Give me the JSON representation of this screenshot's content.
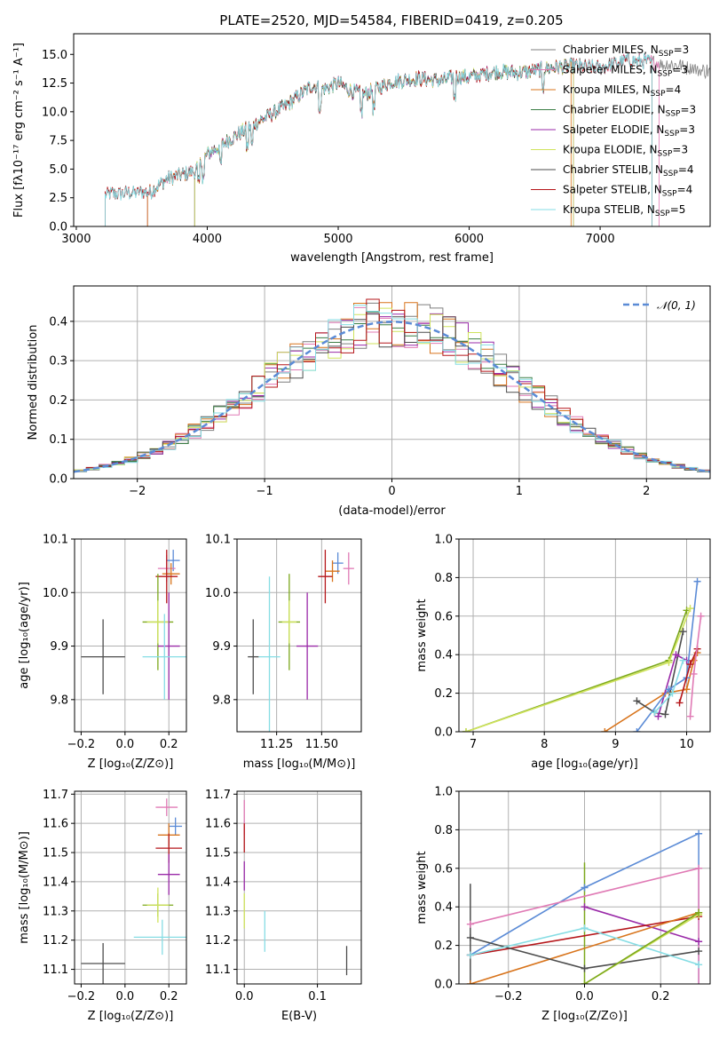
{
  "title": "PLATE=2520, MJD=54584, FIBERID=0419, z=0.205",
  "chart_data": [
    {
      "id": "spectrum",
      "type": "line",
      "xlabel": "wavelength [Angstrom, rest frame]",
      "ylabel": "Flux [fλ10⁻¹⁷ erg cm⁻² s⁻¹ A⁻¹]",
      "xlim": [
        2980,
        7840
      ],
      "ylim": [
        0,
        16.8
      ],
      "xticks": [
        3000,
        4000,
        5000,
        6000,
        7000
      ],
      "yticks": [
        0.0,
        2.5,
        5.0,
        7.5,
        10.0,
        12.5,
        15.0
      ],
      "xtick_labels": [
        "3000",
        "4000",
        "5000",
        "6000",
        "7000"
      ],
      "ytick_labels": [
        "0.0",
        "2.5",
        "5.0",
        "7.5",
        "10.0",
        "12.5",
        "15.0"
      ],
      "legend_position": "right",
      "continuum": [
        [
          3220,
          2.8
        ],
        [
          3500,
          3.0
        ],
        [
          3560,
          3.0
        ],
        [
          3700,
          4.2
        ],
        [
          3900,
          4.8
        ],
        [
          4000,
          6.3
        ],
        [
          4200,
          7.8
        ],
        [
          4400,
          9.2
        ],
        [
          4600,
          10.5
        ],
        [
          4800,
          12.3
        ],
        [
          4900,
          12.0
        ],
        [
          5000,
          12.5
        ],
        [
          5100,
          11.8
        ],
        [
          5200,
          11.5
        ],
        [
          5400,
          12.6
        ],
        [
          5600,
          12.9
        ],
        [
          5800,
          12.7
        ],
        [
          5900,
          13.1
        ],
        [
          6000,
          13.0
        ],
        [
          6200,
          13.5
        ],
        [
          6400,
          13.4
        ],
        [
          6600,
          13.8
        ],
        [
          6800,
          14.0
        ],
        [
          7000,
          13.8
        ],
        [
          7200,
          14.5
        ],
        [
          7400,
          14.3
        ],
        [
          7600,
          14.0
        ],
        [
          7840,
          13.5
        ]
      ],
      "series": [
        {
          "name": "Chabrier MILES, N_SSP=3",
          "color": "#7f7f7f",
          "start": 3540,
          "end": 7840
        },
        {
          "name": "Salpeter MILES, N_SSP=3",
          "color": "#e07ab5",
          "start": 3540,
          "end": 7450
        },
        {
          "name": "Kroupa MILES, N_SSP=4",
          "color": "#d8741c",
          "start": 3540,
          "end": 6780
        },
        {
          "name": "Chabrier ELODIE, N_SSP=3",
          "color": "#3a7d44",
          "start": 3900,
          "end": 6800
        },
        {
          "name": "Salpeter ELODIE, N_SSP=3",
          "color": "#9a2aa8",
          "start": 3900,
          "end": 6800
        },
        {
          "name": "Kroupa ELODIE, N_SSP=3",
          "color": "#cfe35c",
          "start": 3900,
          "end": 6800
        },
        {
          "name": "Chabrier STELIB, N_SSP=4",
          "color": "#4d4d4d",
          "start": 3220,
          "end": 7400
        },
        {
          "name": "Salpeter STELIB, N_SSP=4",
          "color": "#b5161a",
          "start": 3220,
          "end": 7400
        },
        {
          "name": "Kroupa STELIB, N_SSP=5",
          "color": "#86dde4",
          "start": 3220,
          "end": 7400
        }
      ],
      "legend_labels": [
        {
          "model": "Chabrier MILES, N",
          "sub": "SSP",
          "tail": "=3"
        },
        {
          "model": "Salpeter MILES, N",
          "sub": "SSP",
          "tail": "=3"
        },
        {
          "model": "Kroupa MILES, N",
          "sub": "SSP",
          "tail": "=4"
        },
        {
          "model": "Chabrier ELODIE, N",
          "sub": "SSP",
          "tail": "=3"
        },
        {
          "model": "Salpeter ELODIE, N",
          "sub": "SSP",
          "tail": "=3"
        },
        {
          "model": "Kroupa ELODIE, N",
          "sub": "SSP",
          "tail": "=3"
        },
        {
          "model": "Chabrier STELIB, N",
          "sub": "SSP",
          "tail": "=4"
        },
        {
          "model": "Salpeter STELIB, N",
          "sub": "SSP",
          "tail": "=4"
        },
        {
          "model": "Kroupa STELIB, N",
          "sub": "SSP",
          "tail": "=5"
        }
      ]
    },
    {
      "id": "residuals",
      "type": "histogram",
      "xlabel": "(data-model)/error",
      "ylabel": "Normed distribution",
      "xlim": [
        -2.5,
        2.5
      ],
      "ylim": [
        0,
        0.49
      ],
      "xticks": [
        -2,
        -1,
        0,
        1,
        2
      ],
      "xtick_labels": [
        "−2",
        "−1",
        "0",
        "1",
        "2"
      ],
      "yticks": [
        0.0,
        0.1,
        0.2,
        0.3,
        0.4
      ],
      "ytick_labels": [
        "0.0",
        "0.1",
        "0.2",
        "0.3",
        "0.4"
      ],
      "bin_width": 0.1,
      "reference": {
        "label": "𝒩(0, 1)",
        "color": "#5b8bd6",
        "style": "dashed",
        "mean": 0,
        "sigma": 1
      },
      "legend_position": "top-right"
    },
    {
      "id": "age_vs_Z",
      "type": "scatter",
      "xlabel": "Z [log₁₀(Z/Z⊙)]",
      "ylabel": "age  [log₁₀(age/yr)]",
      "xlim": [
        -0.23,
        0.28
      ],
      "ylim": [
        9.74,
        10.1
      ],
      "xticks": [
        -0.2,
        0.0,
        0.2
      ],
      "xtick_labels": [
        "−0.2",
        "0.0",
        "0.2"
      ],
      "yticks": [
        9.8,
        9.9,
        10.0,
        10.1
      ],
      "ytick_labels": [
        "9.8",
        "9.9",
        "10.0",
        "10.1"
      ],
      "points": [
        {
          "x": 0.22,
          "y": 10.06,
          "xerr": 0.03,
          "yerr": 0.02,
          "color": "#5b8bd6"
        },
        {
          "x": 0.19,
          "y": 10.045,
          "xerr": 0.04,
          "yerr": 0.025,
          "color": "#e07ab5"
        },
        {
          "x": 0.21,
          "y": 10.035,
          "xerr": 0.04,
          "yerr": 0.02,
          "color": "#d8741c"
        },
        {
          "x": 0.19,
          "y": 10.03,
          "xerr": 0.05,
          "yerr": 0.05,
          "color": "#b5161a"
        },
        {
          "x": 0.15,
          "y": 9.945,
          "xerr": 0.07,
          "yerr": 0.09,
          "color": "#7ca81c"
        },
        {
          "x": 0.15,
          "y": 9.945,
          "xerr": 0.05,
          "yerr": 0.04,
          "color": "#cfe35c"
        },
        {
          "x": 0.2,
          "y": 9.9,
          "xerr": 0.05,
          "yerr": 0.1,
          "color": "#9a2aa8"
        },
        {
          "x": 0.18,
          "y": 9.88,
          "xerr": 0.1,
          "yerr": 0.08,
          "color": "#86dde4"
        },
        {
          "x": -0.1,
          "y": 9.88,
          "xerr": 0.1,
          "yerr": 0.07,
          "color": "#4d4d4d"
        }
      ]
    },
    {
      "id": "age_vs_mass",
      "type": "scatter",
      "xlabel": "mass [log₁₀(M/M⊙)]",
      "ylabel": "",
      "xlim": [
        11.03,
        11.72
      ],
      "ylim": [
        9.74,
        10.1
      ],
      "xticks": [
        11.25,
        11.5
      ],
      "xtick_labels": [
        "11.25",
        "11.50"
      ],
      "yticks": [
        9.8,
        9.9,
        10.0,
        10.1
      ],
      "ytick_labels": [
        "9.8",
        "9.9",
        "10.0",
        "10.1"
      ],
      "points": [
        {
          "x": 11.59,
          "y": 10.055,
          "xerr": 0.03,
          "yerr": 0.02,
          "color": "#5b8bd6"
        },
        {
          "x": 11.65,
          "y": 10.045,
          "xerr": 0.03,
          "yerr": 0.03,
          "color": "#e07ab5"
        },
        {
          "x": 11.56,
          "y": 10.04,
          "xerr": 0.04,
          "yerr": 0.02,
          "color": "#d8741c"
        },
        {
          "x": 11.52,
          "y": 10.03,
          "xerr": 0.04,
          "yerr": 0.05,
          "color": "#b5161a"
        },
        {
          "x": 11.32,
          "y": 9.945,
          "xerr": 0.06,
          "yerr": 0.09,
          "color": "#7ca81c"
        },
        {
          "x": 11.32,
          "y": 9.945,
          "xerr": 0.04,
          "yerr": 0.04,
          "color": "#cfe35c"
        },
        {
          "x": 11.42,
          "y": 9.9,
          "xerr": 0.06,
          "yerr": 0.1,
          "color": "#9a2aa8"
        },
        {
          "x": 11.21,
          "y": 9.88,
          "xerr": 0.06,
          "yerr": 0.15,
          "color": "#86dde4"
        },
        {
          "x": 11.12,
          "y": 9.88,
          "xerr": 0.03,
          "yerr": 0.07,
          "color": "#4d4d4d"
        }
      ]
    },
    {
      "id": "weight_vs_age",
      "type": "line",
      "xlabel": "age  [log₁₀(age/yr)]",
      "ylabel": "mass weight",
      "xlim": [
        6.8,
        10.33
      ],
      "ylim": [
        0,
        1.0
      ],
      "xticks": [
        7,
        8,
        9,
        10
      ],
      "xtick_labels": [
        "7",
        "8",
        "9",
        "10"
      ],
      "yticks": [
        0.0,
        0.2,
        0.4,
        0.6,
        0.8,
        1.0
      ],
      "ytick_labels": [
        "0.0",
        "0.2",
        "0.4",
        "0.6",
        "0.8",
        "1.0"
      ],
      "series": [
        {
          "color": "#7ca81c",
          "points": [
            [
              6.9,
              0.0
            ],
            [
              9.75,
              0.37
            ],
            [
              10.0,
              0.63
            ]
          ]
        },
        {
          "color": "#cfe35c",
          "points": [
            [
              6.9,
              0.0
            ],
            [
              9.75,
              0.36
            ],
            [
              10.05,
              0.64
            ]
          ]
        },
        {
          "color": "#d8741c",
          "points": [
            [
              8.85,
              0.0
            ],
            [
              9.7,
              0.2
            ],
            [
              10.0,
              0.22
            ],
            [
              10.1,
              0.37
            ],
            [
              10.15,
              0.41
            ]
          ]
        },
        {
          "color": "#4d4d4d",
          "points": [
            [
              9.3,
              0.16
            ],
            [
              9.55,
              0.1
            ],
            [
              9.7,
              0.09
            ],
            [
              9.95,
              0.52
            ]
          ]
        },
        {
          "color": "#9a2aa8",
          "points": [
            [
              9.6,
              0.08
            ],
            [
              9.85,
              0.4
            ],
            [
              10.0,
              0.37
            ]
          ]
        },
        {
          "color": "#5b8bd6",
          "points": [
            [
              9.3,
              0.0
            ],
            [
              9.75,
              0.22
            ],
            [
              10.0,
              0.28
            ],
            [
              10.15,
              0.78
            ]
          ]
        },
        {
          "color": "#b5161a",
          "points": [
            [
              9.9,
              0.15
            ],
            [
              10.05,
              0.35
            ],
            [
              10.15,
              0.43
            ]
          ]
        },
        {
          "color": "#e07ab5",
          "points": [
            [
              10.05,
              0.08
            ],
            [
              10.1,
              0.3
            ],
            [
              10.2,
              0.6
            ]
          ]
        },
        {
          "color": "#86dde4",
          "points": [
            [
              9.55,
              0.1
            ],
            [
              9.8,
              0.2
            ],
            [
              9.95,
              0.37
            ]
          ]
        }
      ]
    },
    {
      "id": "mass_vs_Z",
      "type": "scatter",
      "xlabel": "Z [log₁₀(Z/Z⊙)]",
      "ylabel": "mass [log₁₀(M/M⊙)]",
      "xlim": [
        -0.23,
        0.28
      ],
      "ylim": [
        11.05,
        11.71
      ],
      "xticks": [
        -0.2,
        0.0,
        0.2
      ],
      "xtick_labels": [
        "−0.2",
        "0.0",
        "0.2"
      ],
      "yticks": [
        11.1,
        11.2,
        11.3,
        11.4,
        11.5,
        11.6,
        11.7
      ],
      "ytick_labels": [
        "11.1",
        "11.2",
        "11.3",
        "11.4",
        "11.5",
        "11.6",
        "11.7"
      ],
      "points": [
        {
          "x": 0.19,
          "y": 11.655,
          "xerr": 0.05,
          "yerr": 0.03,
          "color": "#e07ab5"
        },
        {
          "x": 0.23,
          "y": 11.59,
          "xerr": 0.03,
          "yerr": 0.03,
          "color": "#5b8bd6"
        },
        {
          "x": 0.2,
          "y": 11.56,
          "xerr": 0.05,
          "yerr": 0.04,
          "color": "#d8741c"
        },
        {
          "x": 0.2,
          "y": 11.515,
          "xerr": 0.06,
          "yerr": 0.05,
          "color": "#b5161a"
        },
        {
          "x": 0.2,
          "y": 11.425,
          "xerr": 0.05,
          "yerr": 0.07,
          "color": "#9a2aa8"
        },
        {
          "x": 0.15,
          "y": 11.32,
          "xerr": 0.07,
          "yerr": 0.04,
          "color": "#7ca81c"
        },
        {
          "x": 0.15,
          "y": 11.32,
          "xerr": 0.05,
          "yerr": 0.06,
          "color": "#cfe35c"
        },
        {
          "x": 0.17,
          "y": 11.21,
          "xerr": 0.13,
          "yerr": 0.06,
          "color": "#86dde4"
        },
        {
          "x": -0.1,
          "y": 11.12,
          "xerr": 0.1,
          "yerr": 0.07,
          "color": "#4d4d4d"
        }
      ]
    },
    {
      "id": "mass_vs_ebv",
      "type": "scatter",
      "xlabel": "E(B-V)",
      "ylabel": "",
      "xlim": [
        -0.01,
        0.16
      ],
      "ylim": [
        11.05,
        11.71
      ],
      "xticks": [
        0.0,
        0.1
      ],
      "xtick_labels": [
        "0.0",
        "0.1"
      ],
      "yticks": [
        11.1,
        11.2,
        11.3,
        11.4,
        11.5,
        11.6,
        11.7
      ],
      "ytick_labels": [
        "11.1",
        "11.2",
        "11.3",
        "11.4",
        "11.5",
        "11.6",
        "11.7"
      ],
      "points": [
        {
          "x": 0.0,
          "y": 11.62,
          "xerr": 0.0,
          "yerr": 0.06,
          "color": "#e07ab5"
        },
        {
          "x": 0.0,
          "y": 11.55,
          "xerr": 0.0,
          "yerr": 0.05,
          "color": "#b5161a"
        },
        {
          "x": 0.0,
          "y": 11.42,
          "xerr": 0.0,
          "yerr": 0.05,
          "color": "#9a2aa8"
        },
        {
          "x": 0.0,
          "y": 11.3,
          "xerr": 0.0,
          "yerr": 0.06,
          "color": "#cfe35c"
        },
        {
          "x": 0.028,
          "y": 11.23,
          "xerr": 0.0,
          "yerr": 0.07,
          "color": "#86dde4"
        },
        {
          "x": 0.14,
          "y": 11.13,
          "xerr": 0.0,
          "yerr": 0.05,
          "color": "#4d4d4d"
        }
      ]
    },
    {
      "id": "weight_vs_Z",
      "type": "line",
      "xlabel": "Z [log₁₀(Z/Z⊙)]",
      "ylabel": "mass weight",
      "xlim": [
        -0.33,
        0.33
      ],
      "ylim": [
        0,
        1.0
      ],
      "xticks": [
        -0.2,
        0.0,
        0.2
      ],
      "xtick_labels": [
        "−0.2",
        "0.0",
        "0.2"
      ],
      "yticks": [
        0.0,
        0.2,
        0.4,
        0.6,
        0.8,
        1.0
      ],
      "ytick_labels": [
        "0.0",
        "0.2",
        "0.4",
        "0.6",
        "0.8",
        "1.0"
      ],
      "series": [
        {
          "color": "#5b8bd6",
          "points": [
            [
              -0.3,
              0.15
            ],
            [
              0.0,
              0.5
            ],
            [
              0.3,
              0.78
            ]
          ]
        },
        {
          "color": "#e07ab5",
          "points": [
            [
              -0.3,
              0.31
            ],
            [
              0.3,
              0.6
            ]
          ]
        },
        {
          "color": "#9a2aa8",
          "points": [
            [
              0.0,
              0.4
            ],
            [
              0.3,
              0.22
            ]
          ]
        },
        {
          "color": "#b5161a",
          "points": [
            [
              -0.3,
              0.15
            ],
            [
              0.3,
              0.35
            ]
          ]
        },
        {
          "color": "#d8741c",
          "points": [
            [
              -0.3,
              0.0
            ],
            [
              0.3,
              0.37
            ]
          ]
        },
        {
          "color": "#4d4d4d",
          "points": [
            [
              -0.3,
              0.24
            ],
            [
              0.0,
              0.08
            ],
            [
              0.3,
              0.17
            ]
          ]
        },
        {
          "color": "#86dde4",
          "points": [
            [
              -0.3,
              0.15
            ],
            [
              0.0,
              0.29
            ],
            [
              0.3,
              0.1
            ]
          ]
        },
        {
          "color": "#cfe35c",
          "points": [
            [
              0.0,
              0.0
            ],
            [
              0.3,
              0.36
            ]
          ]
        },
        {
          "color": "#7ca81c",
          "points": [
            [
              0.0,
              0.0
            ],
            [
              0.3,
              0.37
            ]
          ]
        }
      ],
      "vertical_bars": [
        {
          "color": "#4d4d4d",
          "x": -0.3,
          "from": 0.0,
          "to": 0.52
        },
        {
          "color": "#7ca81c",
          "x": 0.0,
          "from": 0.0,
          "to": 0.63
        },
        {
          "color": "#5b8bd6",
          "x": 0.3,
          "from": 0.0,
          "to": 0.78
        },
        {
          "color": "#e07ab5",
          "x": 0.3,
          "from": 0.0,
          "to": 0.6
        }
      ]
    }
  ]
}
